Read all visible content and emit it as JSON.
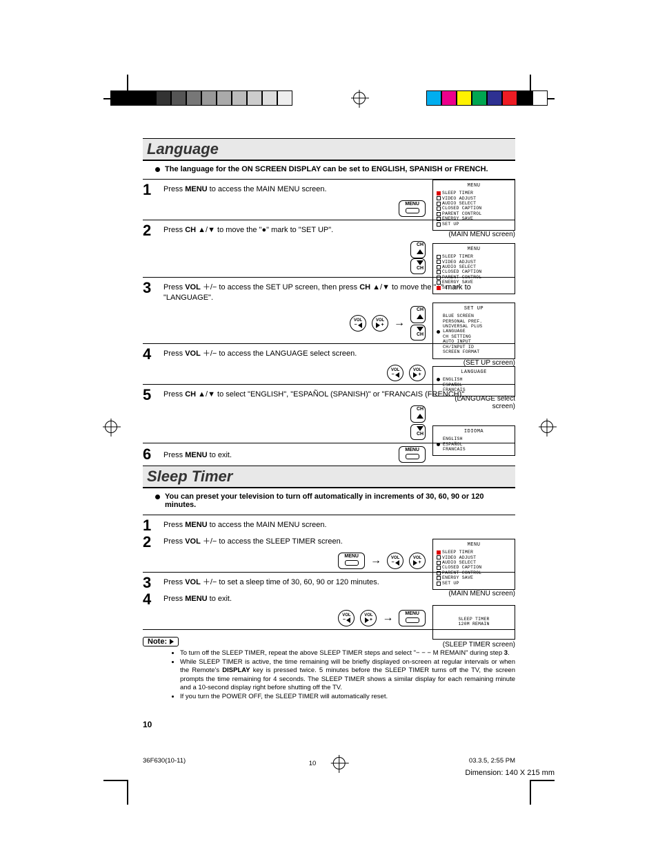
{
  "color_bar": {
    "left_swatches": [
      "#000000",
      "#000000",
      "#000000",
      "#333333",
      "#555555",
      "#777777",
      "#999999",
      "#aaaaaa",
      "#bbbbbb",
      "#cccccc",
      "#dddddd",
      "#eeeeee"
    ],
    "right_swatches": [
      "#00aeef",
      "#ec008c",
      "#fff200",
      "#00a651",
      "#2e3192",
      "#ed1c24",
      "#000000",
      "#ffffff"
    ]
  },
  "sections": {
    "language": {
      "title": "Language",
      "intro": "The language for the ON SCREEN DISPLAY can be set to ENGLISH, SPANISH or FRENCH.",
      "steps": [
        {
          "n": "1",
          "text": "Press <b>MENU</b> to access the MAIN MENU screen."
        },
        {
          "n": "2",
          "text": "Press <b>CH</b> ▲/▼ to move the \"●\" mark to \"SET UP\"."
        },
        {
          "n": "3",
          "text": "Press <b>VOL</b> ＋/− to access the SET UP screen, then press <b>CH</b> ▲/▼ to move the \"●\" mark to \"LANGUAGE\"."
        },
        {
          "n": "4",
          "text": "Press <b>VOL</b> ＋/− to access the LANGUAGE select screen."
        },
        {
          "n": "5",
          "text": "Press <b>CH</b> ▲/▼ to select \"ENGLISH\", \"ESPAÑOL (SPANISH)\" or \"FRANCAIS (FRENCH)\"."
        },
        {
          "n": "6",
          "text": "Press <b>MENU</b> to exit."
        }
      ],
      "osd": [
        {
          "caption": "(MAIN MENU screen)",
          "title": "MENU",
          "items": [
            "SLEEP TIMER",
            "VIDEO ADJUST",
            "AUDIO SELECT",
            "CLOSED CAPTION",
            "PARENT CONTROL",
            "ENERGY SAVE",
            "SET UP"
          ],
          "highlight": 0
        },
        {
          "caption": "",
          "title": "MENU",
          "items": [
            "SLEEP TIMER",
            "VIDEO ADJUST",
            "AUDIO SELECT",
            "CLOSED CAPTION",
            "PARENT CONTROL",
            "ENERGY SAVE",
            "SET UP"
          ],
          "highlight": 6
        },
        {
          "caption": "(SET UP screen)",
          "title": "SET UP",
          "items": [
            "BLUE SCREEN",
            "PERSONAL PREF.",
            "UNIVERSAL PLUS",
            "LANGUAGE",
            "CH SETTING",
            "AUTO INPUT",
            "CH/INPUT ID",
            "SCREEN FORMAT"
          ],
          "highlight": 3,
          "plain": true
        },
        {
          "caption": "(LANGUAGE select screen)",
          "title": "LANGUAGE",
          "items": [
            "ENGLISH",
            "ESPAÑOL",
            "FRANCAIS"
          ],
          "highlight": 0,
          "plain": true
        },
        {
          "caption": "",
          "title": "IDIOMA",
          "items": [
            "ENGLISH",
            "ESPAÑOL",
            "FRANCAIS"
          ],
          "highlight": 1,
          "plain": true
        }
      ]
    },
    "sleep": {
      "title": "Sleep Timer",
      "intro": "You can preset your television to turn off automatically in increments of 30, 60, 90 or 120 minutes.",
      "steps": [
        {
          "n": "1",
          "text": "Press <b>MENU</b> to access the MAIN MENU screen."
        },
        {
          "n": "2",
          "text": "Press <b>VOL</b> ＋/− to access the SLEEP TIMER screen."
        },
        {
          "n": "3",
          "text": "Press <b>VOL</b> ＋/− to set a sleep time of 30, 60, 90 or 120 minutes."
        },
        {
          "n": "4",
          "text": "Press <b>MENU</b> to exit."
        }
      ],
      "osd": [
        {
          "caption": "(MAIN MENU screen)",
          "title": "MENU",
          "items": [
            "SLEEP TIMER",
            "VIDEO ADJUST",
            "AUDIO SELECT",
            "CLOSED CAPTION",
            "PARENT CONTROL",
            "ENERGY SAVE",
            "SET UP"
          ],
          "highlight": 0
        },
        {
          "caption": "(SLEEP TIMER screen)",
          "title": "",
          "center": "SLEEP TIMER\n120M REMAIN"
        }
      ],
      "note_label": "Note:",
      "notes": [
        "To turn off the SLEEP TIMER, repeat the above SLEEP TIMER steps and select \"− − − M REMAIN\" during step <b>3</b>.",
        "While SLEEP TIMER is active, the time remaining will be briefly displayed on-screen at regular intervals or when the Remote's <b>DISPLAY</b> key is pressed twice. 5 minutes before the SLEEP TIMER turns off the TV, the screen prompts the time remaining for 4 seconds. The SLEEP TIMER shows a similar display for each remaining minute and a 10-second display right before shutting off the TV.",
        "If you turn the POWER OFF, the SLEEP TIMER will automatically reset."
      ]
    }
  },
  "page_number": "10",
  "footer_left": "36F630(10-11)",
  "footer_center": "10",
  "footer_right": "03.3.5, 2:55 PM",
  "dimension_note": "Dimension: 140  X 215 mm",
  "buttons": {
    "menu": "MENU",
    "ch": "CH",
    "vol_plus": "VOL\n+",
    "vol_minus": "VOL\n−"
  }
}
